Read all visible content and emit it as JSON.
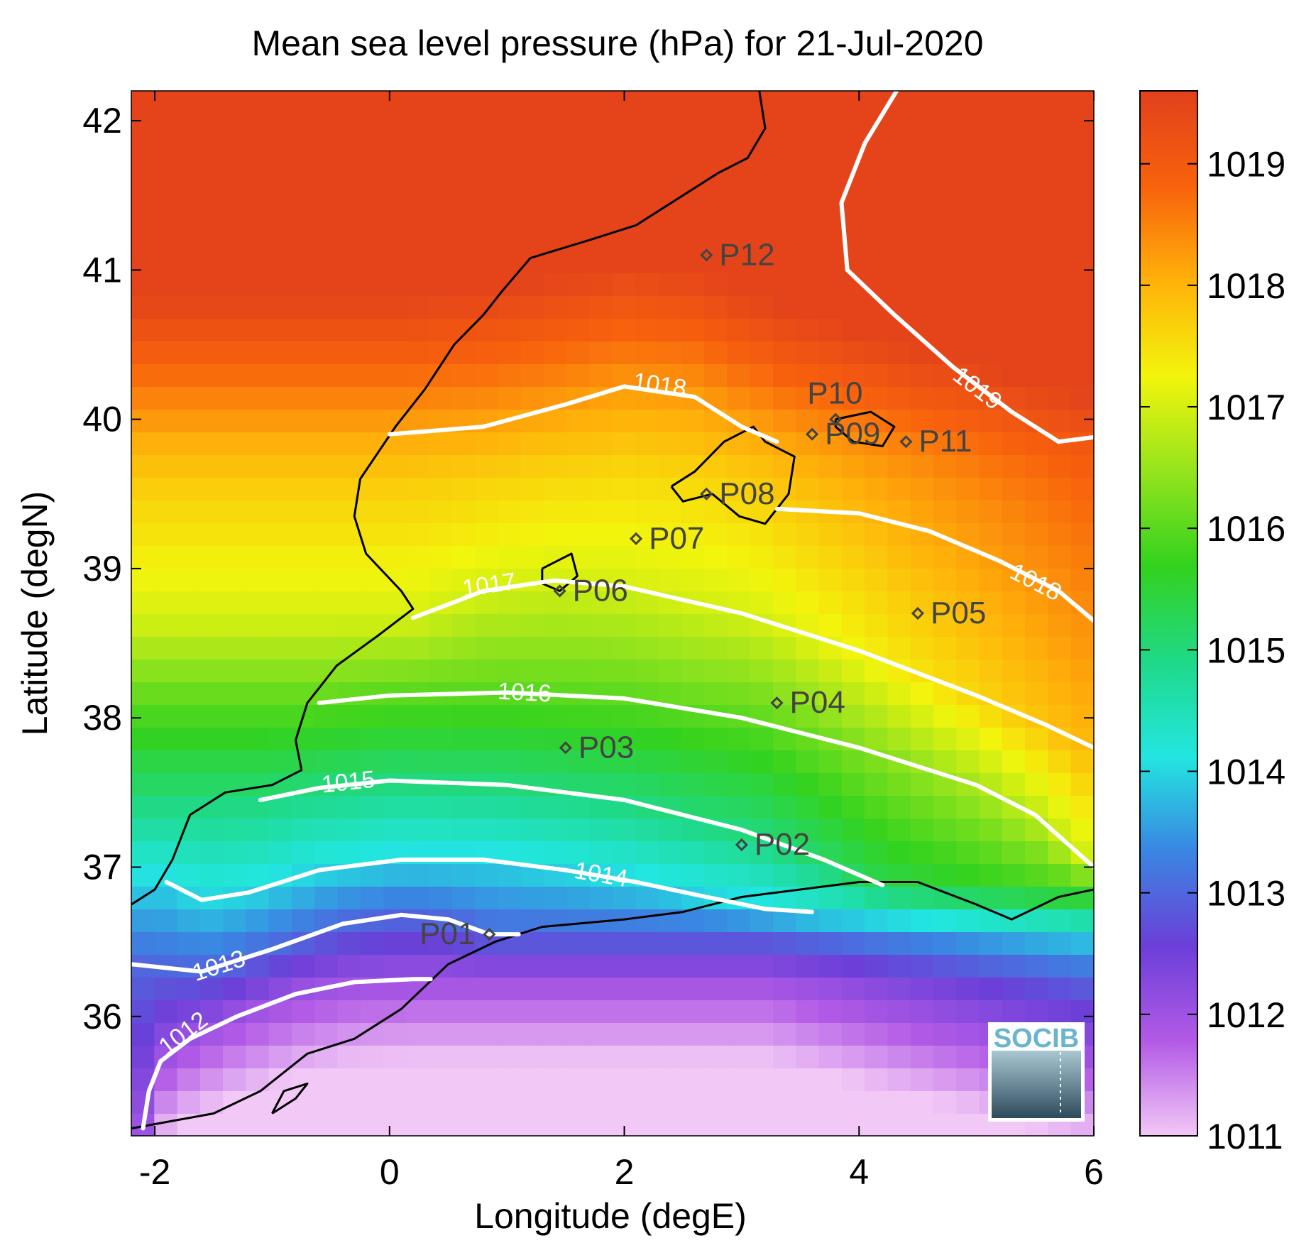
{
  "title": "Mean sea level pressure (hPa) for 21-Jul-2020",
  "logo": {
    "text": "SOCIB",
    "icon": "socib-logo"
  },
  "colors": {
    "coastline": "#000000",
    "isobar": "#ffffff",
    "station": "#444444",
    "colormap": [
      "#f2c8f6",
      "#b25ae6",
      "#6b3fd8",
      "#3a86e2",
      "#22e6e0",
      "#1fd987",
      "#33d21e",
      "#95e41d",
      "#f3f50c",
      "#ffb10a",
      "#f8620c",
      "#e2401c"
    ]
  },
  "chart_data": {
    "type": "heatmap",
    "title": "Mean sea level pressure (hPa) for 21-Jul-2020",
    "xlabel": "Longitude (degE)",
    "ylabel": "Latitude (degN)",
    "xlim": [
      -2.2,
      6
    ],
    "ylim": [
      35.2,
      42.2
    ],
    "xticks": [
      -2,
      0,
      2,
      4,
      6
    ],
    "yticks": [
      36,
      37,
      38,
      39,
      40,
      41,
      42
    ],
    "colorbar": {
      "min": 1011,
      "max": 1019.6,
      "ticks": [
        1011,
        1012,
        1013,
        1014,
        1015,
        1016,
        1017,
        1018,
        1019
      ]
    },
    "grid": false,
    "isobars": [
      {
        "level": 1012,
        "label": "1012",
        "points": [
          [
            -2.1,
            35.25
          ],
          [
            -2.05,
            35.5
          ],
          [
            -1.95,
            35.7
          ],
          [
            -1.7,
            35.85
          ],
          [
            -1.3,
            36.0
          ],
          [
            -0.8,
            36.15
          ],
          [
            -0.3,
            36.23
          ],
          [
            0.2,
            36.25
          ],
          [
            0.35,
            36.25
          ]
        ],
        "label_at": [
          -1.75,
          35.88
        ]
      },
      {
        "level": 1013,
        "label": "1013",
        "points": [
          [
            -2.2,
            36.35
          ],
          [
            -1.6,
            36.3
          ],
          [
            -1.0,
            36.45
          ],
          [
            -0.4,
            36.62
          ],
          [
            0.1,
            36.68
          ],
          [
            0.5,
            36.65
          ],
          [
            0.85,
            36.55
          ],
          [
            1.1,
            36.55
          ]
        ],
        "label_at": [
          -1.45,
          36.33
        ]
      },
      {
        "level": 1014,
        "label": "1014",
        "points": [
          [
            -1.9,
            36.9
          ],
          [
            -1.6,
            36.78
          ],
          [
            -1.2,
            36.83
          ],
          [
            -0.6,
            36.98
          ],
          [
            0.1,
            37.05
          ],
          [
            0.8,
            37.05
          ],
          [
            1.5,
            36.98
          ],
          [
            2.1,
            36.9
          ],
          [
            2.7,
            36.8
          ],
          [
            3.2,
            36.72
          ],
          [
            3.6,
            36.7
          ]
        ],
        "label_at": [
          1.8,
          36.94
        ]
      },
      {
        "level": 1015,
        "label": "1015",
        "points": [
          [
            -1.1,
            37.45
          ],
          [
            -0.6,
            37.53
          ],
          [
            0.0,
            37.58
          ],
          [
            1.0,
            37.55
          ],
          [
            2.0,
            37.45
          ],
          [
            3.0,
            37.25
          ],
          [
            3.7,
            37.05
          ],
          [
            4.2,
            36.88
          ]
        ],
        "label_at": [
          -0.35,
          37.56
        ]
      },
      {
        "level": 1016,
        "label": "1016",
        "points": [
          [
            -0.6,
            38.1
          ],
          [
            0.0,
            38.15
          ],
          [
            1.0,
            38.17
          ],
          [
            2.0,
            38.13
          ],
          [
            3.0,
            38.0
          ],
          [
            4.0,
            37.8
          ],
          [
            5.0,
            37.55
          ],
          [
            5.5,
            37.35
          ],
          [
            6.0,
            37.0
          ]
        ],
        "label_at": [
          1.15,
          38.16
        ]
      },
      {
        "level": 1017,
        "label": "1017",
        "points": [
          [
            0.2,
            38.67
          ],
          [
            0.8,
            38.85
          ],
          [
            1.4,
            38.92
          ],
          [
            2.0,
            38.88
          ],
          [
            3.0,
            38.7
          ],
          [
            4.0,
            38.45
          ],
          [
            5.0,
            38.15
          ],
          [
            5.6,
            37.95
          ],
          [
            6.0,
            37.8
          ]
        ],
        "label_at": [
          0.85,
          38.88
        ]
      },
      {
        "level": 1018,
        "label": "1018",
        "points": [
          [
            0.0,
            39.9
          ],
          [
            0.8,
            39.95
          ],
          [
            1.5,
            40.1
          ],
          [
            2.0,
            40.22
          ],
          [
            2.6,
            40.15
          ],
          [
            3.0,
            39.95
          ],
          [
            3.3,
            39.85
          ]
        ],
        "label_at": [
          2.3,
          40.22
        ]
      },
      {
        "level": 1018,
        "label": "1018",
        "points": [
          [
            3.3,
            39.4
          ],
          [
            4.0,
            39.37
          ],
          [
            4.6,
            39.25
          ],
          [
            5.2,
            39.05
          ],
          [
            5.7,
            38.85
          ],
          [
            6.0,
            38.65
          ]
        ],
        "label_at": [
          5.5,
          38.9
        ]
      },
      {
        "level": 1019,
        "label": "1019",
        "points": [
          [
            4.32,
            42.2
          ],
          [
            4.05,
            41.85
          ],
          [
            3.85,
            41.45
          ],
          [
            3.9,
            41.0
          ],
          [
            4.3,
            40.7
          ],
          [
            4.8,
            40.35
          ],
          [
            5.3,
            40.05
          ],
          [
            5.7,
            39.85
          ],
          [
            6.0,
            39.88
          ]
        ],
        "label_at": [
          5.0,
          40.2
        ]
      }
    ],
    "stations": [
      {
        "id": "P01",
        "lon": 0.85,
        "lat": 36.55
      },
      {
        "id": "P02",
        "lon": 3.0,
        "lat": 37.15
      },
      {
        "id": "P03",
        "lon": 1.5,
        "lat": 37.8
      },
      {
        "id": "P04",
        "lon": 3.3,
        "lat": 38.1
      },
      {
        "id": "P05",
        "lon": 4.5,
        "lat": 38.7
      },
      {
        "id": "P06",
        "lon": 1.45,
        "lat": 38.85
      },
      {
        "id": "P07",
        "lon": 2.1,
        "lat": 39.2
      },
      {
        "id": "P08",
        "lon": 2.7,
        "lat": 39.5
      },
      {
        "id": "P09",
        "lon": 3.6,
        "lat": 39.9
      },
      {
        "id": "P10",
        "lon": 3.8,
        "lat": 40.0
      },
      {
        "id": "P11",
        "lon": 4.4,
        "lat": 39.85
      },
      {
        "id": "P12",
        "lon": 2.7,
        "lat": 41.1
      }
    ]
  }
}
